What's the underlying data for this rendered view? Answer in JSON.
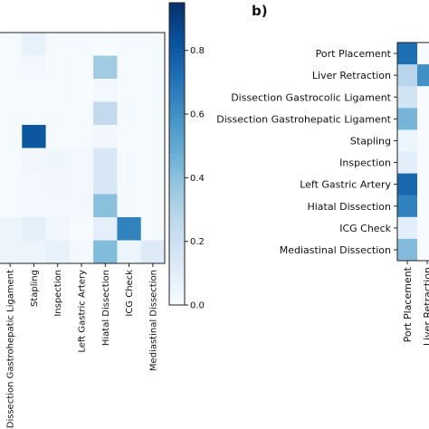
{
  "chart_data": [
    {
      "type": "heatmap",
      "panel": "a",
      "title": "",
      "xlabel": "",
      "ylabel": "",
      "x_categories": [
        "Dissection Gastrohepatic Ligament",
        "Stapling",
        "Inspection",
        "Left Gastric Artery",
        "Hiatal Dissection",
        "ICG Check",
        "Mediastinal Dissection"
      ],
      "row_count": 10,
      "values": [
        [
          0.01,
          0.07,
          0.01,
          0.01,
          0.0,
          0.01,
          0.01
        ],
        [
          0.01,
          0.02,
          0.01,
          0.0,
          0.35,
          0.01,
          0.01
        ],
        [
          0.01,
          0.01,
          0.01,
          0.0,
          0.02,
          0.01,
          0.01
        ],
        [
          0.01,
          0.01,
          0.01,
          0.01,
          0.25,
          0.01,
          0.01
        ],
        [
          0.01,
          0.81,
          0.01,
          0.01,
          0.03,
          0.01,
          0.01
        ],
        [
          0.01,
          0.03,
          0.04,
          0.02,
          0.15,
          0.01,
          0.01
        ],
        [
          0.01,
          0.02,
          0.03,
          0.02,
          0.15,
          0.01,
          0.01
        ],
        [
          0.01,
          0.02,
          0.02,
          0.02,
          0.4,
          0.01,
          0.01
        ],
        [
          0.05,
          0.09,
          0.03,
          0.01,
          0.09,
          0.65,
          0.01
        ],
        [
          0.05,
          0.05,
          0.07,
          0.02,
          0.42,
          0.05,
          0.12
        ]
      ],
      "colorbar": {
        "range": [
          0,
          0.95
        ],
        "ticks": [
          "0.0",
          "0.2",
          "0.4",
          "0.6",
          "0.8"
        ]
      }
    },
    {
      "type": "heatmap",
      "panel": "b",
      "panel_label": "b)",
      "title": "",
      "xlabel": "",
      "ylabel": "",
      "y_categories": [
        "Port Placement",
        "Liver Retraction",
        "Dissection Gastrocolic Ligament",
        "Dissection Gastrohepatic Ligament",
        "Stapling",
        "Inspection",
        "Left Gastric Artery",
        "Hiatal Dissection",
        "ICG Check",
        "Mediastinal Dissection"
      ],
      "x_categories": [
        "Port Placement",
        "Liver Retraction"
      ],
      "visible_values": [
        [
          0.72,
          0.0
        ],
        [
          0.28,
          0.6
        ],
        [
          0.18,
          0.0
        ],
        [
          0.45,
          0.0
        ],
        [
          0.05,
          0.0
        ],
        [
          0.1,
          0.0
        ],
        [
          0.75,
          0.0
        ],
        [
          0.65,
          0.0
        ],
        [
          0.1,
          0.0
        ],
        [
          0.42,
          0.0
        ]
      ]
    }
  ]
}
